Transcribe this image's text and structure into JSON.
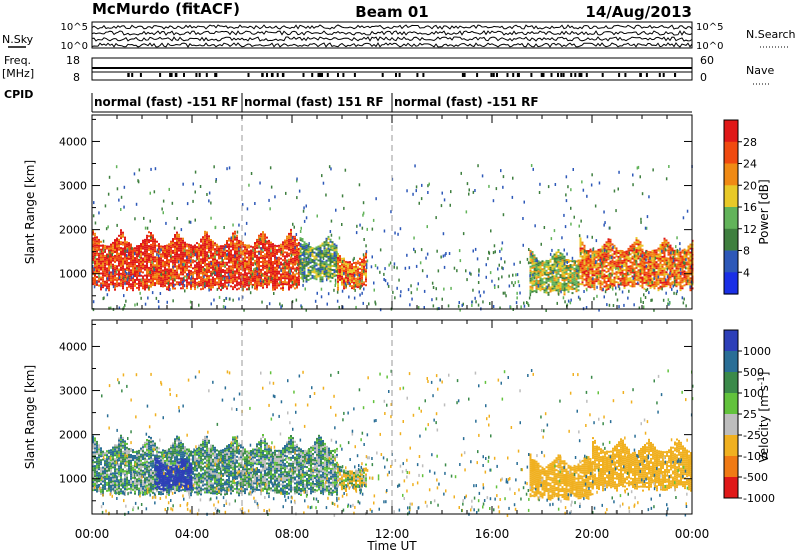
{
  "header": {
    "station": "McMurdo (fitACF)",
    "beam": "Beam 01",
    "date": "14/Aug/2013"
  },
  "strip": {
    "left_labels": {
      "nsky": "N.Sky",
      "nsky_ticks": [
        "10^5",
        "10^0"
      ],
      "freq": "Freq.",
      "freq_unit": "[MHz]",
      "freq_ticks": [
        "18",
        "8"
      ],
      "cpid": "CPID"
    },
    "right_labels": {
      "nsearch": "N.Search",
      "nsearch_ticks": [
        "10^5",
        "10^0"
      ],
      "nave": "Nave",
      "nave_ticks": [
        "60",
        "0"
      ]
    },
    "cpid_segments": [
      {
        "label": "normal (fast) -151 RF",
        "start_hour": 0,
        "end_hour": 6
      },
      {
        "label": "normal (fast) 151 RF",
        "start_hour": 6,
        "end_hour": 12
      },
      {
        "label": "normal (fast) -151 RF",
        "start_hour": 12,
        "end_hour": 24
      }
    ]
  },
  "chart_data": [
    {
      "type": "heatmap",
      "title": "",
      "ylabel": "Slant Range [km]",
      "xlabel": "",
      "xlim_hours": [
        0,
        24
      ],
      "ylim": [
        200,
        4600
      ],
      "y_ticks": [
        "1000",
        "2000",
        "3000",
        "4000"
      ],
      "colorbar": {
        "label": "Power [dB]",
        "ticks": [
          "28",
          "24",
          "20",
          "16",
          "12",
          "8",
          "4"
        ],
        "levels": [
          {
            "min": 0,
            "max": 4,
            "color": "#1a2fe6"
          },
          {
            "min": 4,
            "max": 8,
            "color": "#2d58b8"
          },
          {
            "min": 8,
            "max": 12,
            "color": "#3f7f3f"
          },
          {
            "min": 12,
            "max": 16,
            "color": "#62b35a"
          },
          {
            "min": 16,
            "max": 20,
            "color": "#e8c928"
          },
          {
            "min": 20,
            "max": 24,
            "color": "#f08a14"
          },
          {
            "min": 24,
            "max": 28,
            "color": "#f04a10"
          },
          {
            "min": 28,
            "max": 32,
            "color": "#e01818"
          }
        ]
      },
      "echo_regions": [
        {
          "t0": 0.0,
          "t1": 8.3,
          "r0": 600,
          "r1": 2200,
          "level": 28
        },
        {
          "t0": 8.3,
          "t1": 9.8,
          "r0": 800,
          "r1": 2000,
          "level": 12
        },
        {
          "t0": 9.8,
          "t1": 11.0,
          "r0": 600,
          "r1": 1600,
          "level": 24
        },
        {
          "t0": 17.5,
          "t1": 19.5,
          "r0": 500,
          "r1": 1700,
          "level": 16
        },
        {
          "t0": 19.5,
          "t1": 24.0,
          "r0": 600,
          "r1": 2000,
          "level": 24
        }
      ]
    },
    {
      "type": "heatmap",
      "title": "",
      "ylabel": "Slant Range [km]",
      "xlabel": "Time UT",
      "xlim_hours": [
        0,
        24
      ],
      "ylim": [
        200,
        4600
      ],
      "y_ticks": [
        "1000",
        "2000",
        "3000",
        "4000"
      ],
      "x_ticks": [
        "00:00",
        "04:00",
        "08:00",
        "12:00",
        "16:00",
        "20:00",
        "00:00"
      ],
      "colorbar": {
        "label": "Velocity [m s^-1]",
        "ticks": [
          "1000",
          "500",
          "100",
          "25",
          "-25",
          "-100",
          "-500",
          "-1000"
        ],
        "levels": [
          {
            "min": 500,
            "max": 1000,
            "color": "#2d3fb8"
          },
          {
            "min": 100,
            "max": 500,
            "color": "#2a6e96"
          },
          {
            "min": 25,
            "max": 100,
            "color": "#3b8a4a"
          },
          {
            "min": -25,
            "max": 25,
            "color": "#62c23c"
          },
          {
            "min": -100,
            "max": -25,
            "color": "#bdbdbd"
          },
          {
            "min": -500,
            "max": -100,
            "color": "#f0b020"
          },
          {
            "min": -1000,
            "max": -500,
            "color": "#f07a14"
          },
          {
            "min": -1500,
            "max": -1000,
            "color": "#e01818"
          }
        ]
      },
      "echo_regions": [
        {
          "t0": 0.0,
          "t1": 9.8,
          "r0": 600,
          "r1": 2200,
          "level": 50
        },
        {
          "t0": 2.5,
          "t1": 4.0,
          "r0": 700,
          "r1": 1600,
          "level": 800
        },
        {
          "t0": 9.8,
          "t1": 11.0,
          "r0": 700,
          "r1": 1400,
          "level": -80
        },
        {
          "t0": 17.5,
          "t1": 20.0,
          "r0": 500,
          "r1": 1700,
          "level": -300
        },
        {
          "t0": 20.0,
          "t1": 24.0,
          "r0": 700,
          "r1": 2100,
          "level": -300
        }
      ]
    }
  ]
}
